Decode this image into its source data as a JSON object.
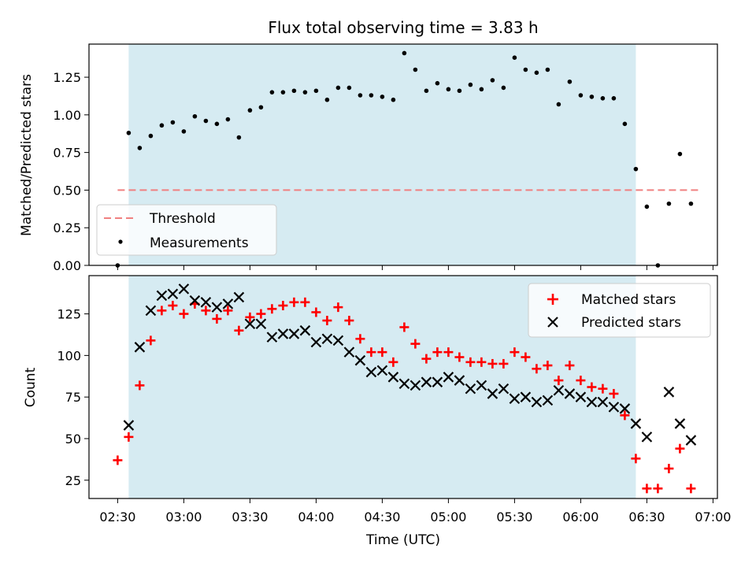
{
  "chart_data": [
    {
      "type": "scatter",
      "title": "Flux total observing time = 3.83 h",
      "xlabel": "",
      "ylabel": "Matched/Predicted stars",
      "ylim": [
        0,
        1.47
      ],
      "yticks": [
        "0.00",
        "0.25",
        "0.50",
        "0.75",
        "1.00",
        "1.25"
      ],
      "xticks": [
        "02:30",
        "03:00",
        "03:30",
        "04:00",
        "04:30",
        "05:00",
        "05:30",
        "06:00",
        "06:30",
        "07:00"
      ],
      "xlim": [
        "02:17",
        "07:02"
      ],
      "shaded_interval": [
        "02:35",
        "06:25"
      ],
      "shade_color": "#add8e6",
      "legend_position": "lower-left",
      "threshold": {
        "name": "Threshold",
        "value": 0.5,
        "x_range": [
          "02:30",
          "06:55"
        ],
        "color": "#f08080"
      },
      "series": [
        {
          "name": "Measurements",
          "color": "#000000",
          "marker": "dot",
          "x": [
            "02:30",
            "02:35",
            "02:40",
            "02:45",
            "02:50",
            "02:55",
            "03:00",
            "03:05",
            "03:10",
            "03:15",
            "03:20",
            "03:25",
            "03:30",
            "03:35",
            "03:40",
            "03:45",
            "03:50",
            "03:55",
            "04:00",
            "04:05",
            "04:10",
            "04:15",
            "04:20",
            "04:25",
            "04:30",
            "04:35",
            "04:40",
            "04:45",
            "04:50",
            "04:55",
            "05:00",
            "05:05",
            "05:10",
            "05:15",
            "05:20",
            "05:25",
            "05:30",
            "05:35",
            "05:40",
            "05:45",
            "05:50",
            "05:55",
            "06:00",
            "06:05",
            "06:10",
            "06:15",
            "06:20",
            "06:25",
            "06:30",
            "06:35",
            "06:40",
            "06:45",
            "06:50"
          ],
          "y": [
            0.0,
            0.88,
            0.78,
            0.86,
            0.93,
            0.95,
            0.89,
            0.99,
            0.96,
            0.94,
            0.97,
            0.85,
            1.03,
            1.05,
            1.15,
            1.15,
            1.16,
            1.15,
            1.16,
            1.1,
            1.18,
            1.18,
            1.13,
            1.13,
            1.12,
            1.1,
            1.41,
            1.3,
            1.16,
            1.21,
            1.17,
            1.16,
            1.2,
            1.17,
            1.23,
            1.18,
            1.38,
            1.3,
            1.28,
            1.3,
            1.07,
            1.22,
            1.13,
            1.12,
            1.11,
            1.11,
            0.94,
            0.64,
            0.39,
            0.0,
            0.41,
            0.74,
            0.41
          ]
        }
      ]
    },
    {
      "type": "scatter",
      "title": "",
      "xlabel": "Time (UTC)",
      "ylabel": "Count",
      "ylim": [
        14,
        148
      ],
      "yticks": [
        "25",
        "50",
        "75",
        "100",
        "125"
      ],
      "xticks": [
        "02:30",
        "03:00",
        "03:30",
        "04:00",
        "04:30",
        "05:00",
        "05:30",
        "06:00",
        "06:30",
        "07:00"
      ],
      "xlim": [
        "02:17",
        "07:02"
      ],
      "shaded_interval": [
        "02:35",
        "06:25"
      ],
      "shade_color": "#add8e6",
      "legend_position": "upper-right",
      "series": [
        {
          "name": "Matched stars",
          "color": "#ff0000",
          "marker": "plus",
          "x": [
            "02:30",
            "02:35",
            "02:40",
            "02:45",
            "02:50",
            "02:55",
            "03:00",
            "03:05",
            "03:10",
            "03:15",
            "03:20",
            "03:25",
            "03:30",
            "03:35",
            "03:40",
            "03:45",
            "03:50",
            "03:55",
            "04:00",
            "04:05",
            "04:10",
            "04:15",
            "04:20",
            "04:25",
            "04:30",
            "04:35",
            "04:40",
            "04:45",
            "04:50",
            "04:55",
            "05:00",
            "05:05",
            "05:10",
            "05:15",
            "05:20",
            "05:25",
            "05:30",
            "05:35",
            "05:40",
            "05:45",
            "05:50",
            "05:55",
            "06:00",
            "06:05",
            "06:10",
            "06:15",
            "06:20",
            "06:25",
            "06:30",
            "06:35",
            "06:40",
            "06:45",
            "06:50"
          ],
          "y": [
            37,
            51,
            82,
            109,
            127,
            130,
            125,
            131,
            127,
            122,
            127,
            115,
            123,
            125,
            128,
            130,
            132,
            132,
            126,
            121,
            129,
            121,
            110,
            102,
            102,
            96,
            117,
            107,
            98,
            102,
            102,
            99,
            96,
            96,
            95,
            95,
            102,
            99,
            92,
            94,
            85,
            94,
            85,
            81,
            80,
            77,
            64,
            38,
            20,
            20,
            32,
            44,
            20
          ]
        },
        {
          "name": "Predicted stars",
          "color": "#000000",
          "marker": "cross",
          "x": [
            "02:35",
            "02:40",
            "02:45",
            "02:50",
            "02:55",
            "03:00",
            "03:05",
            "03:10",
            "03:15",
            "03:20",
            "03:25",
            "03:30",
            "03:35",
            "03:40",
            "03:45",
            "03:50",
            "03:55",
            "04:00",
            "04:05",
            "04:10",
            "04:15",
            "04:20",
            "04:25",
            "04:30",
            "04:35",
            "04:40",
            "04:45",
            "04:50",
            "04:55",
            "05:00",
            "05:05",
            "05:10",
            "05:15",
            "05:20",
            "05:25",
            "05:30",
            "05:35",
            "05:40",
            "05:45",
            "05:50",
            "05:55",
            "06:00",
            "06:05",
            "06:10",
            "06:15",
            "06:20",
            "06:25",
            "06:30",
            "06:40",
            "06:45",
            "06:50"
          ],
          "y": [
            58,
            105,
            127,
            136,
            137,
            140,
            133,
            132,
            129,
            131,
            135,
            119,
            119,
            111,
            113,
            113,
            115,
            108,
            110,
            109,
            102,
            97,
            90,
            91,
            87,
            83,
            82,
            84,
            84,
            87,
            85,
            80,
            82,
            77,
            80,
            74,
            75,
            72,
            73,
            79,
            77,
            75,
            72,
            72,
            69,
            68,
            59,
            51,
            78,
            59,
            49
          ]
        }
      ]
    }
  ]
}
